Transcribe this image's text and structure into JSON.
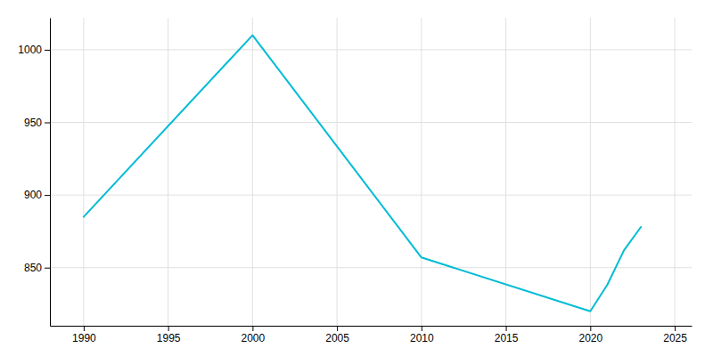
{
  "chart_data": {
    "type": "line",
    "x": [
      1990,
      2000,
      2010,
      2020,
      2021,
      2022,
      2023
    ],
    "values": [
      885,
      1010,
      857,
      820,
      838,
      862,
      878
    ],
    "color": "#00bcd4",
    "xlim": [
      1988,
      2026
    ],
    "ylim": [
      810,
      1022
    ],
    "xticks": [
      1990,
      1995,
      2000,
      2005,
      2010,
      2015,
      2020,
      2025
    ],
    "yticks": [
      850,
      900,
      950,
      1000
    ],
    "grid": true
  }
}
